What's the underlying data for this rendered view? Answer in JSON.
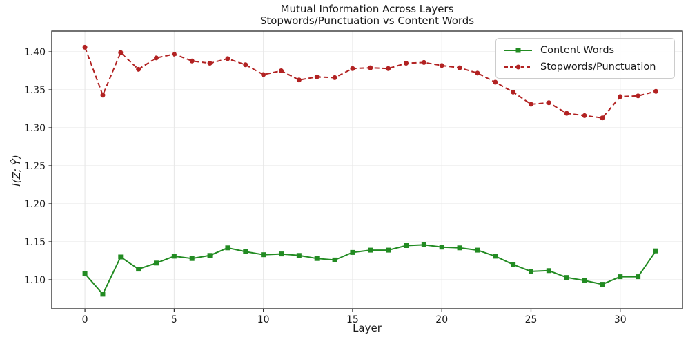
{
  "figure": {
    "title": "Mutual Information Across Layers",
    "subtitle": "Stopwords/Punctuation vs Content Words"
  },
  "chart_data": {
    "type": "line",
    "title": "Mutual Information Across Layers",
    "subtitle": "Stopwords/Punctuation vs Content Words",
    "xlabel": "Layer",
    "ylabel": "I(Z; Ŷ)",
    "x": [
      0,
      1,
      2,
      3,
      4,
      5,
      6,
      7,
      8,
      9,
      10,
      11,
      12,
      13,
      14,
      15,
      16,
      17,
      18,
      19,
      20,
      21,
      22,
      23,
      24,
      25,
      26,
      27,
      28,
      29,
      30,
      31,
      32
    ],
    "series": [
      {
        "name": "Content Words",
        "color": "#228B22",
        "linestyle": "solid",
        "marker": "square",
        "values": [
          1.108,
          1.081,
          1.13,
          1.114,
          1.122,
          1.131,
          1.128,
          1.132,
          1.142,
          1.137,
          1.133,
          1.134,
          1.132,
          1.128,
          1.126,
          1.136,
          1.139,
          1.139,
          1.145,
          1.146,
          1.143,
          1.142,
          1.139,
          1.131,
          1.12,
          1.111,
          1.112,
          1.103,
          1.099,
          1.094,
          1.104,
          1.104,
          1.138
        ]
      },
      {
        "name": "Stopwords/Punctuation",
        "color": "#B22222",
        "linestyle": "dashed",
        "marker": "circle",
        "values": [
          1.406,
          1.343,
          1.399,
          1.377,
          1.392,
          1.397,
          1.388,
          1.385,
          1.391,
          1.383,
          1.37,
          1.375,
          1.363,
          1.367,
          1.366,
          1.378,
          1.379,
          1.378,
          1.385,
          1.386,
          1.382,
          1.379,
          1.372,
          1.36,
          1.347,
          1.331,
          1.333,
          1.319,
          1.316,
          1.313,
          1.341,
          1.342,
          1.348
        ]
      }
    ],
    "xticks": [
      0,
      5,
      10,
      15,
      20,
      25,
      30
    ],
    "xtick_labels": [
      "0",
      "5",
      "10",
      "15",
      "20",
      "25",
      "30"
    ],
    "yticks": [
      1.1,
      1.15,
      1.2,
      1.25,
      1.3,
      1.35,
      1.4
    ],
    "ytick_labels": [
      "1.10",
      "1.15",
      "1.20",
      "1.25",
      "1.30",
      "1.35",
      "1.40"
    ],
    "xlim": [
      -1.86,
      33.49
    ],
    "ylim": [
      1.0618,
      1.4273
    ],
    "grid": true,
    "grid_color": "#e6e6e6",
    "spine_color": "#262626",
    "legend_position": "upper right"
  }
}
